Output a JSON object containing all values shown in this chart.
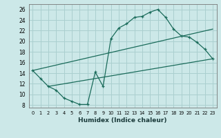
{
  "xlabel": "Humidex (Indice chaleur)",
  "xlim": [
    -0.5,
    23.5
  ],
  "ylim": [
    7.5,
    27
  ],
  "yticks": [
    8,
    10,
    12,
    14,
    16,
    18,
    20,
    22,
    24,
    26
  ],
  "xticks": [
    0,
    1,
    2,
    3,
    4,
    5,
    6,
    7,
    8,
    9,
    10,
    11,
    12,
    13,
    14,
    15,
    16,
    17,
    18,
    19,
    20,
    21,
    22,
    23
  ],
  "bg_color": "#cce8e8",
  "grid_color": "#aacfcf",
  "line_color": "#1a6b5a",
  "curve_x": [
    0,
    1,
    2,
    3,
    4,
    5,
    6,
    7,
    8,
    9,
    10,
    11,
    12,
    13,
    14,
    15,
    16,
    17,
    18,
    19,
    20,
    21,
    22,
    23
  ],
  "curve_y": [
    14.5,
    13.0,
    11.5,
    10.8,
    9.3,
    8.7,
    8.1,
    8.1,
    14.2,
    11.5,
    20.5,
    22.5,
    23.3,
    24.5,
    24.7,
    25.5,
    26.0,
    24.5,
    22.3,
    21.0,
    20.8,
    19.8,
    18.5,
    16.7
  ],
  "upper_line_x": [
    0,
    23
  ],
  "upper_line_y": [
    14.5,
    22.3
  ],
  "lower_line_x": [
    2,
    23
  ],
  "lower_line_y": [
    11.5,
    16.7
  ]
}
